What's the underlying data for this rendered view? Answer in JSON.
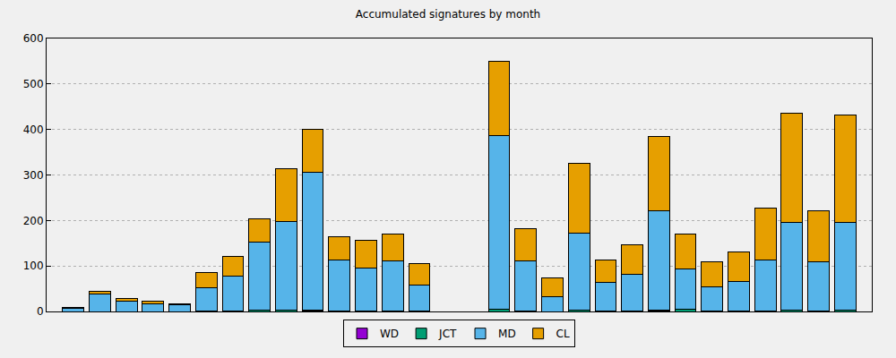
{
  "chart_data": {
    "type": "bar",
    "title": "Accumulated signatures by month",
    "stacked": true,
    "grid": true,
    "legend": "bottom",
    "tick_labels": "y",
    "categories": [
      null,
      null,
      null,
      null,
      null,
      null,
      null,
      null,
      null,
      null,
      null,
      null,
      null,
      null,
      null,
      null,
      null,
      null,
      null,
      null,
      null,
      null,
      null,
      null,
      null,
      null,
      null,
      null,
      null,
      null
    ],
    "xlim": [
      -1,
      30
    ],
    "ylim": [
      0,
      600
    ],
    "yticks": [
      0,
      100,
      200,
      300,
      400,
      500,
      600
    ],
    "series": [
      {
        "name": "WD",
        "color": "#9400d3",
        "values": [
          0,
          0,
          0,
          0,
          0,
          0,
          0,
          0,
          0,
          1,
          0,
          0,
          0,
          0,
          null,
          null,
          0,
          0,
          0,
          0,
          0,
          0,
          1,
          0,
          0,
          0,
          0,
          0,
          0,
          0
        ]
      },
      {
        "name": "JCT",
        "color": "#009e73",
        "values": [
          0,
          0,
          0,
          0,
          0,
          1,
          1,
          3,
          2,
          2,
          1,
          1,
          1,
          1,
          null,
          null,
          4,
          1,
          0,
          2,
          1,
          1,
          2,
          5,
          1,
          1,
          1,
          2,
          1,
          2
        ]
      },
      {
        "name": "MD",
        "color": "#56b4e9",
        "values": [
          7,
          39,
          22,
          16,
          15,
          52,
          76,
          150,
          195,
          303,
          113,
          95,
          111,
          58,
          null,
          null,
          382,
          110,
          33,
          171,
          63,
          80,
          219,
          89,
          53,
          65,
          112,
          193,
          108,
          193
        ]
      },
      {
        "name": "CL",
        "color": "#e69f00",
        "values": [
          1,
          5,
          7,
          6,
          2,
          32,
          44,
          51,
          116,
          95,
          50,
          61,
          59,
          46,
          null,
          null,
          164,
          71,
          41,
          153,
          50,
          66,
          162,
          77,
          55,
          64,
          115,
          241,
          112,
          237
        ]
      }
    ]
  }
}
